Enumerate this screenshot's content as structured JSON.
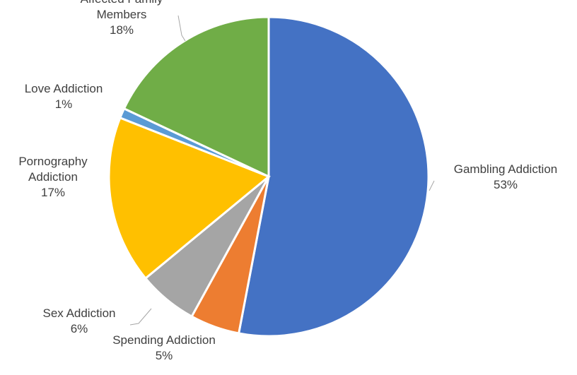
{
  "chart_data": {
    "type": "pie",
    "title": "",
    "slices": [
      {
        "label": [
          "Gambling Addiction"
        ],
        "pct_label": "53%",
        "value": 53,
        "color": "#4472c4"
      },
      {
        "label": [
          "Spending Addiction"
        ],
        "pct_label": "5%",
        "value": 5,
        "color": "#ed7d31"
      },
      {
        "label": [
          "Sex Addiction"
        ],
        "pct_label": "6%",
        "value": 6,
        "color": "#a5a5a5"
      },
      {
        "label": [
          "Pornography",
          "Addiction"
        ],
        "pct_label": "17%",
        "value": 17,
        "color": "#ffc000"
      },
      {
        "label": [
          "Love Addiction"
        ],
        "pct_label": "1%",
        "value": 1,
        "color": "#5b9bd5"
      },
      {
        "label": [
          "Affected Family",
          "Members"
        ],
        "pct_label": "18%",
        "value": 18,
        "color": "#70ad47"
      }
    ]
  }
}
